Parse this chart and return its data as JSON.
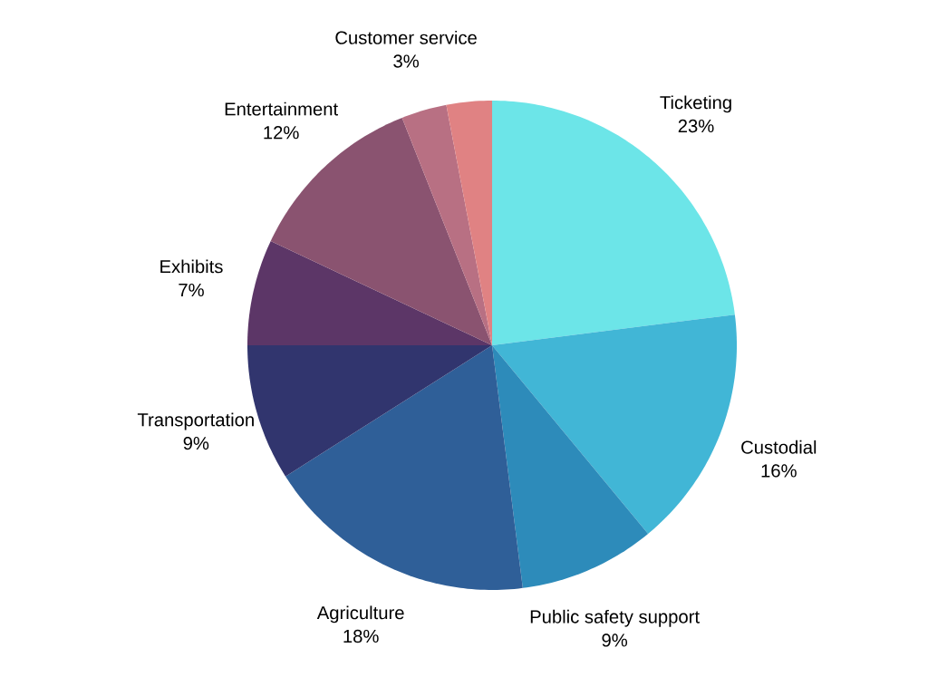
{
  "chart_data": {
    "type": "pie",
    "categories": [
      "Ticketing",
      "Custodial",
      "Public safety support",
      "Agriculture",
      "Transportation",
      "Exhibits",
      "Entertainment",
      "Customer service",
      null
    ],
    "values": [
      23,
      16,
      9,
      18,
      9,
      7,
      12,
      3,
      3
    ],
    "value_labels": [
      "23%",
      "16%",
      "9%",
      "18%",
      "9%",
      "7%",
      "12%",
      "3%",
      null
    ],
    "colors": [
      "#6ce5e8",
      "#41b6d6",
      "#2d8bba",
      "#2f5f98",
      "#31356e",
      "#5c3667",
      "#8a5370",
      "#b87083",
      "#e08283"
    ]
  }
}
